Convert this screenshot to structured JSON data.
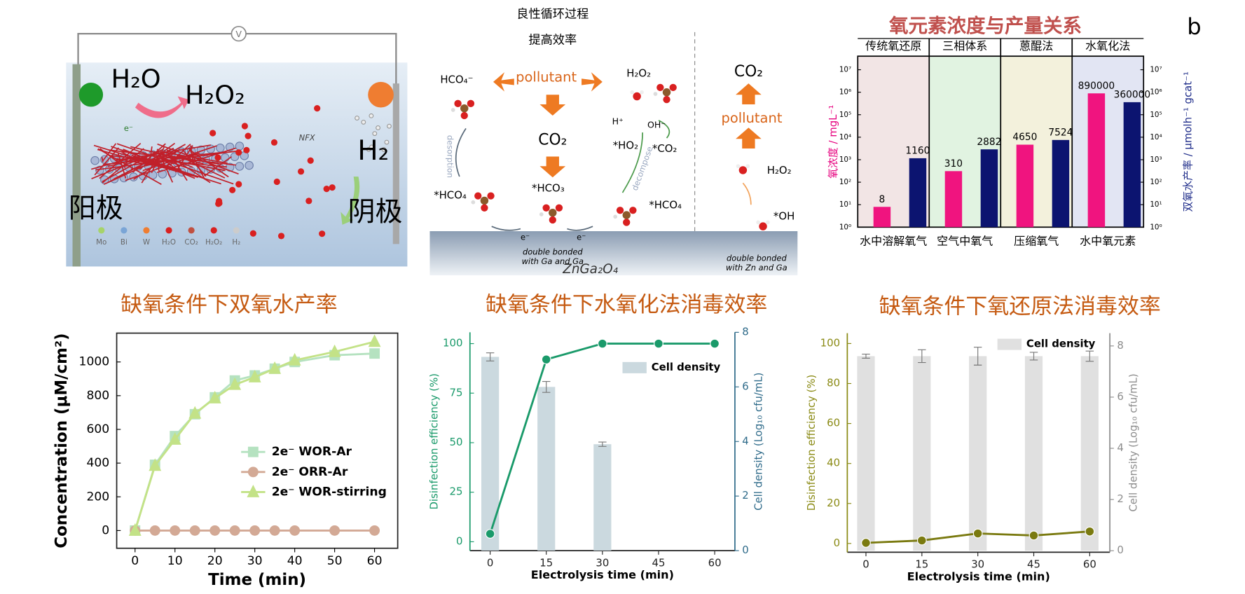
{
  "chart_data": [
    {
      "type": "bar",
      "title": "氧元素浓度与产量关系",
      "panel": "b",
      "log": true,
      "groups": [
        {
          "label": "传统氧还原",
          "color": "#f2e5e5"
        },
        {
          "label": "三相体系",
          "color": "#e1f3e1"
        },
        {
          "label": "蒽醌法",
          "color": "#f3f1dc"
        },
        {
          "label": "水氧化法",
          "color": "#e2e5f3"
        }
      ],
      "categories": [
        "水中溶解氧气",
        "空气中氧气",
        "压缩氧气",
        "水中氧元素"
      ],
      "ylabel": "氧浓度 / mgL⁻¹",
      "y2label": "双氧水产率 / μmolh⁻¹ gcat⁻¹",
      "ycolor": "#e6007e",
      "y2color": "#1f2d8a",
      "ylim": [
        1,
        40000000
      ],
      "yticks": [
        {
          "value": 1,
          "label": "10⁰"
        },
        {
          "value": 10,
          "label": "10¹"
        },
        {
          "value": 100,
          "label": "10²"
        },
        {
          "value": 1000,
          "label": "10³"
        },
        {
          "value": 10000,
          "label": "10⁴"
        },
        {
          "value": 100000,
          "label": "10⁵"
        },
        {
          "value": 1000000,
          "label": "10⁶"
        },
        {
          "value": 10000000,
          "label": "10⁷"
        }
      ],
      "y2lim": [
        1,
        40000000
      ],
      "y2ticks": [
        {
          "value": 1,
          "label": "10⁰"
        },
        {
          "value": 10,
          "label": "10¹"
        },
        {
          "value": 100,
          "label": "10²"
        },
        {
          "value": 1000,
          "label": "10³"
        },
        {
          "value": 10000,
          "label": "10⁴"
        },
        {
          "value": 100000,
          "label": "10⁵"
        },
        {
          "value": 1000000,
          "label": "10⁶"
        },
        {
          "value": 10000000,
          "label": "10⁷"
        }
      ],
      "series": [
        {
          "color": "#f0147f",
          "values": [
            8,
            310,
            4650,
            890000
          ]
        },
        {
          "color": "#0c1470",
          "axis": "y2",
          "values": [
            1160,
            2882,
            7524,
            360000
          ]
        }
      ]
    },
    {
      "type": "line",
      "title": "缺氧条件下双氧水产率",
      "xlabel": "Time (min)",
      "ylabel": "Concentration (μM/cm²)",
      "x": [
        0,
        5,
        10,
        15,
        20,
        25,
        30,
        35,
        40,
        50,
        60
      ],
      "xlim": [
        -4.6,
        65.8
      ],
      "xticks": [
        0,
        10,
        20,
        30,
        40,
        50,
        60
      ],
      "ylim": [
        -105,
        1171
      ],
      "yticks": [
        0,
        200,
        400,
        600,
        800,
        1000
      ],
      "series": [
        {
          "name": "2e⁻ WOR-Ar",
          "color": "#b5e2c0",
          "marker": "square",
          "values": [
            0,
            390,
            560,
            690,
            790,
            890,
            920,
            960,
            1000,
            1040,
            1050
          ]
        },
        {
          "name": "2e⁻ ORR-Ar",
          "color": "#d3a995",
          "marker": "circle",
          "values": [
            0,
            0,
            0,
            0,
            0,
            0,
            0,
            0,
            0,
            0,
            0
          ]
        },
        {
          "name": "2e⁻ WOR-stirring",
          "color": "#c3e287",
          "marker": "triangle",
          "values": [
            0,
            385,
            540,
            695,
            785,
            865,
            910,
            960,
            1010,
            1060,
            1120
          ]
        }
      ]
    },
    {
      "type": "combo",
      "title": "缺氧条件下水氧化法消毒效率",
      "xlabel": "Electrolysis time (min)",
      "ylabel": "Disinfection efficiency (%)",
      "y2label": "Cell density (Log₁₀ cfu/mL)",
      "ycolor": "#1a9a6a",
      "y2color": "#2f6b8a",
      "legend": "right",
      "x": [
        0,
        15,
        30,
        45,
        60
      ],
      "xlim": [
        -5.4,
        65.4
      ],
      "xticks": [
        0,
        15,
        30,
        45,
        60
      ],
      "ylim": [
        -4.5,
        105.7
      ],
      "yticks": [
        0,
        25,
        50,
        75,
        100
      ],
      "y2lim": [
        0,
        8
      ],
      "y2ticks": [
        0,
        2,
        4,
        6,
        8
      ],
      "series": [
        {
          "name": "Cell density",
          "type": "bar",
          "axis": "y2",
          "color": "#cbd9df",
          "values": [
            7.1,
            6.0,
            3.9,
            null,
            null
          ],
          "errors": [
            0.15,
            0.2,
            0.08,
            null,
            null
          ]
        },
        {
          "type": "line",
          "color": "#1a9a6a",
          "values": [
            4,
            92,
            100,
            100,
            100
          ]
        }
      ]
    },
    {
      "type": "combo",
      "title": "缺氧条件下氧还原法消毒效率",
      "xlabel": "Electrolysis time (min)",
      "ylabel": "Disinfection efficiency (%)",
      "y2label": "Cell density (Log₁₀ cfu/mL)",
      "ycolor": "#8a8a14",
      "y2color": "#8c8c8c",
      "legend": "upper right",
      "x": [
        0,
        15,
        30,
        45,
        60
      ],
      "xlim": [
        -5,
        65.4
      ],
      "xticks": [
        0,
        15,
        30,
        45,
        60
      ],
      "ylim": [
        -4.4,
        105.2
      ],
      "yticks": [
        0,
        20,
        40,
        60,
        80,
        100
      ],
      "y2lim": [
        -0.06,
        8.5
      ],
      "y2ticks": [
        0,
        2,
        4,
        6,
        8
      ],
      "series": [
        {
          "name": "Cell density",
          "type": "bar",
          "axis": "y2",
          "color": "#e0e0e0",
          "values": [
            7.6,
            7.6,
            7.6,
            7.6,
            7.6
          ],
          "errors": [
            0.08,
            0.25,
            0.35,
            0.15,
            0.2
          ]
        },
        {
          "type": "line",
          "color": "#7a7a10",
          "values": [
            0.3,
            1.5,
            5,
            4,
            6
          ]
        }
      ]
    }
  ],
  "diagrams": {
    "cell": {
      "water": "H₂O",
      "peroxide": "H₂O₂",
      "hydrogen": "H₂",
      "anode": "阳极",
      "cathode": "阴极",
      "drug": "NFX",
      "meter": "V",
      "electron": "e⁻",
      "legend": [
        "Mo",
        "Bi",
        "W",
        "H₂O",
        "CO₂",
        "H₂O₂",
        "H₂"
      ]
    },
    "cycle": {
      "title": "良性循环过程",
      "subtitle": "提高效率",
      "hco4_ion": "HCO₄⁻",
      "pollutant": "pollutant",
      "h2o2": "H₂O₂",
      "co2": "CO₂",
      "ho2": "*HO₂",
      "co2_ads": "*CO₂",
      "proton": "H⁺",
      "hydroxide": "OH⁻",
      "desorption": "desorption",
      "decompose": "decompose",
      "hco4_left": "*HCO₄",
      "hco3": "*HCO₃",
      "hco4_right": "*HCO₄",
      "e_left": "e⁻",
      "e_right": "e⁻",
      "bond_ga": [
        "double bonded",
        "with Ga and Ga"
      ],
      "material": "ZnGa₂O₄",
      "co2_out": "CO₂",
      "pollutant_right": "pollutant",
      "h2o2_right": "H₂O₂",
      "oh": "*OH",
      "bond_zn": [
        "double bonded",
        "with Zn and Ga"
      ]
    }
  }
}
